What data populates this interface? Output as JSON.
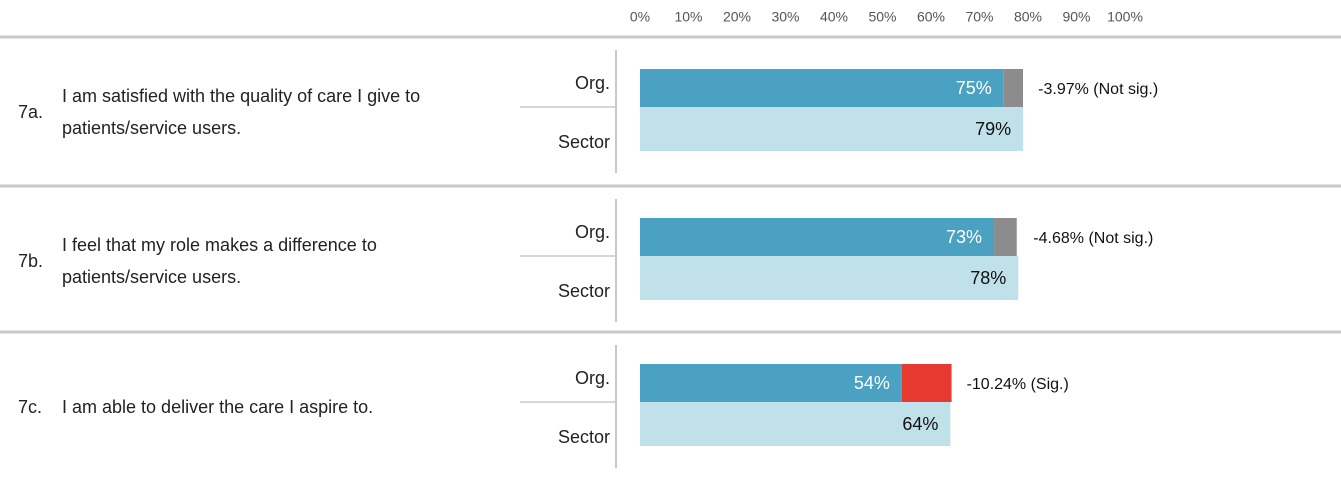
{
  "chart_data": {
    "type": "bar",
    "orientation": "horizontal",
    "xlim": [
      0,
      100
    ],
    "xticks": [
      {
        "value": 0,
        "label": "0%"
      },
      {
        "value": 10,
        "label": "10%"
      },
      {
        "value": 20,
        "label": "20%"
      },
      {
        "value": 30,
        "label": "30%"
      },
      {
        "value": 40,
        "label": "40%"
      },
      {
        "value": 50,
        "label": "50%"
      },
      {
        "value": 60,
        "label": "60%"
      },
      {
        "value": 70,
        "label": "70%"
      },
      {
        "value": 80,
        "label": "80%"
      },
      {
        "value": 90,
        "label": "90%"
      },
      {
        "value": 100,
        "label": "100%"
      }
    ],
    "ids": [
      "7a.",
      "7b.",
      "7c."
    ],
    "categories": [
      "I am satisfied with the quality of care I give to patients/service users.",
      "I feel that my role makes a difference to patients/service users.",
      "I am able to deliver the care I aspire to."
    ],
    "series": [
      {
        "name": "Org.",
        "color": "#4aa1c2",
        "label_color": "#ffffff",
        "values": [
          75,
          73,
          54
        ],
        "value_labels": [
          "75%",
          "73%",
          "54%"
        ]
      },
      {
        "name": "Sector",
        "color": "#c0e0ea",
        "label_color": "#111111",
        "values": [
          79,
          78,
          64
        ],
        "value_labels": [
          "79%",
          "78%",
          "64%"
        ]
      }
    ],
    "differences": [
      -3.97,
      -4.68,
      -10.24
    ],
    "difference_labels": [
      "-3.97% (Not sig.)",
      "-4.68% (Not sig.)",
      "-10.24% (Sig.)"
    ],
    "significant": [
      false,
      false,
      true
    ],
    "significant_color": "#e63a30",
    "not_significant_color": "#8c8c8c"
  }
}
